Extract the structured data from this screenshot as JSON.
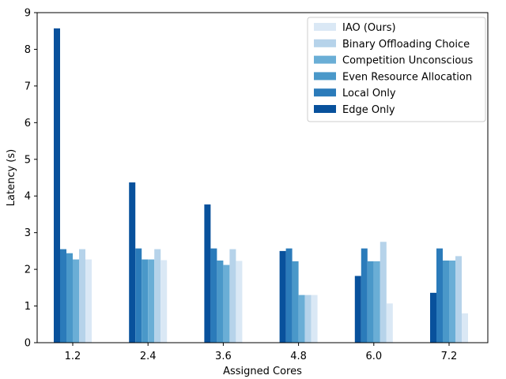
{
  "chart_data": {
    "type": "bar",
    "title": "",
    "xlabel": "Assigned Cores",
    "ylabel": "Latency (s)",
    "ylim": [
      0,
      9
    ],
    "yticks": [
      "0",
      "1",
      "2",
      "3",
      "4",
      "5",
      "6",
      "7",
      "8",
      "9"
    ],
    "categories": [
      "1.2",
      "2.4",
      "3.6",
      "4.8",
      "6.0",
      "7.2"
    ],
    "legend_position": "top-right",
    "series": [
      {
        "name": "Edge Only",
        "color": "#08519c",
        "values": [
          8.57,
          4.37,
          3.77,
          2.5,
          1.82,
          1.36
        ]
      },
      {
        "name": "Local Only",
        "color": "#2b7bba",
        "values": [
          2.55,
          2.57,
          2.57,
          2.57,
          2.57,
          2.57
        ]
      },
      {
        "name": "Even Resource Allocation",
        "color": "#4a98c9",
        "values": [
          2.44,
          2.27,
          2.24,
          2.22,
          2.22,
          2.24
        ]
      },
      {
        "name": "Competition Unconscious",
        "color": "#6aaed6",
        "values": [
          2.27,
          2.27,
          2.12,
          1.3,
          2.22,
          2.24
        ]
      },
      {
        "name": "Binary Offloading Choice",
        "color": "#b6d3ea",
        "values": [
          2.55,
          2.55,
          2.55,
          1.3,
          2.75,
          2.36
        ]
      },
      {
        "name": "IAO (Ours)",
        "color": "#dae8f5",
        "values": [
          2.27,
          2.25,
          2.23,
          1.3,
          1.07,
          0.8
        ]
      }
    ],
    "legend_order": [
      "IAO (Ours)",
      "Binary Offloading Choice",
      "Competition Unconscious",
      "Even Resource Allocation",
      "Local Only",
      "Edge Only"
    ]
  }
}
